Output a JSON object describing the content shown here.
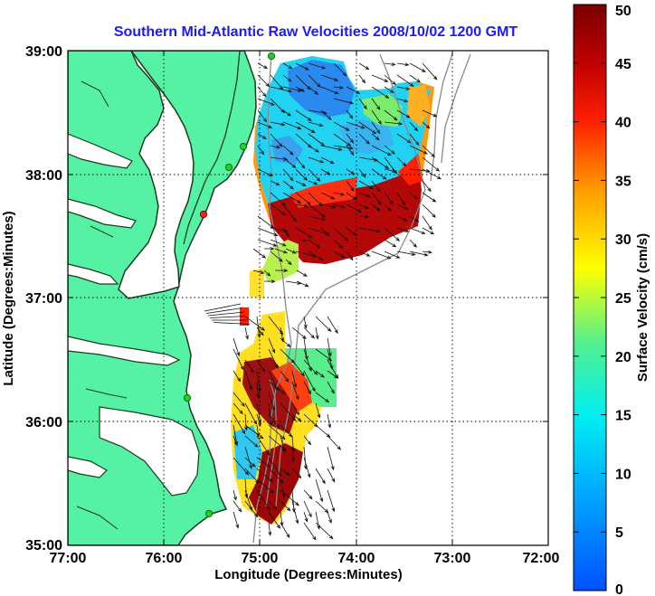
{
  "title": "Southern Mid-Atlantic Raw Velocities 2008/10/02 1200 GMT",
  "x_axis": {
    "label": "Longitude (Degrees:Minutes)",
    "ticks": [
      "77:00",
      "76:00",
      "75:00",
      "74:00",
      "73:00",
      "72:00"
    ]
  },
  "y_axis": {
    "label": "Latitude (Degrees:Minutes)",
    "ticks": [
      "39:00",
      "38:00",
      "37:00",
      "36:00",
      "35:00"
    ]
  },
  "colorbar": {
    "label": "Surface Velocity (cm/s)",
    "ticks": [
      "50",
      "45",
      "40",
      "35",
      "30",
      "25",
      "20",
      "15",
      "10",
      "5",
      "0"
    ],
    "min": 0,
    "max": 50
  },
  "colors": {
    "title": "#1a1aff",
    "land": "#55f2a6",
    "coast": "#1c3a1c",
    "bathymetry": "#8a8a8a",
    "station": "#22d022",
    "grid": "#000000"
  },
  "grid": true,
  "map_extent": {
    "lon": [
      -77,
      -72
    ],
    "lat": [
      35,
      39
    ]
  }
}
